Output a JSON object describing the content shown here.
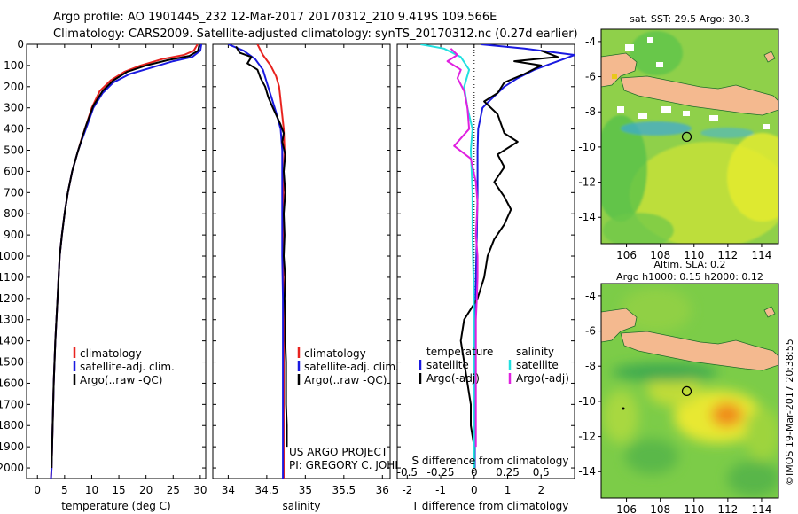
{
  "header": {
    "line1": "Argo profile: AO 1901445_232 12-Mar-2017 20170312_210 9.419S 109.566E",
    "line2": "Climatology: CARS2009. Satellite-adjusted climatology: synTS_20170312.nc (0.27d earlier)"
  },
  "watermark": "©IMOS 19-Mar-2017 20:38:55",
  "colors": {
    "climatology": "#e8231f",
    "satellite": "#1a1ae0",
    "argo": "#000000",
    "sat_cyan": "#22e0e0",
    "argo_adj": "#e020e0",
    "land": "#f4b98f"
  },
  "chart_data": [
    {
      "type": "line",
      "panel": "temperature",
      "xlabel": "temperature (deg C)",
      "xlim": [
        -2,
        31
      ],
      "xticks": [
        0,
        5,
        10,
        15,
        20,
        25,
        30
      ],
      "ylim": [
        2050,
        0
      ],
      "yticks": [
        0,
        100,
        200,
        300,
        400,
        500,
        600,
        700,
        800,
        900,
        1000,
        1100,
        1200,
        1300,
        1400,
        1500,
        1600,
        1700,
        1800,
        1900,
        2000
      ],
      "legend": [
        "climatology",
        "satellite-adj. clim.",
        "Argo(..raw -QC)"
      ],
      "series": [
        {
          "name": "climatology",
          "color": "#e8231f",
          "points": [
            [
              29.5,
              0
            ],
            [
              28.8,
              30
            ],
            [
              27,
              50
            ],
            [
              23,
              70
            ],
            [
              19,
              100
            ],
            [
              16,
              130
            ],
            [
              13.5,
              170
            ],
            [
              11.5,
              220
            ],
            [
              10,
              300
            ],
            [
              9,
              380
            ],
            [
              8.1,
              450
            ],
            [
              7.5,
              500
            ],
            [
              6.4,
              600
            ],
            [
              5.6,
              700
            ],
            [
              5,
              800
            ],
            [
              4.5,
              900
            ],
            [
              4.1,
              1000
            ],
            [
              3.7,
              1200
            ],
            [
              3.3,
              1400
            ],
            [
              3,
              1600
            ],
            [
              2.8,
              1800
            ],
            [
              2.6,
              2000
            ],
            [
              2.5,
              2050
            ]
          ]
        },
        {
          "name": "satellite-adj. clim.",
          "color": "#1a1ae0",
          "points": [
            [
              30.2,
              0
            ],
            [
              30,
              30
            ],
            [
              28.5,
              60
            ],
            [
              25,
              80
            ],
            [
              21,
              110
            ],
            [
              17,
              140
            ],
            [
              14,
              180
            ],
            [
              12,
              230
            ],
            [
              10.3,
              300
            ],
            [
              9.2,
              380
            ],
            [
              8.2,
              450
            ],
            [
              7.5,
              500
            ],
            [
              6.4,
              600
            ],
            [
              5.6,
              700
            ],
            [
              5,
              800
            ],
            [
              4.5,
              900
            ],
            [
              4.1,
              1000
            ],
            [
              3.7,
              1200
            ],
            [
              3.3,
              1400
            ],
            [
              3,
              1600
            ],
            [
              2.8,
              1800
            ],
            [
              2.6,
              2000
            ],
            [
              2.5,
              2050
            ]
          ]
        },
        {
          "name": "Argo(..raw -QC)",
          "color": "#000000",
          "points": [
            [
              29.8,
              5
            ],
            [
              29.6,
              30
            ],
            [
              28,
              55
            ],
            [
              24,
              75
            ],
            [
              20,
              100
            ],
            [
              16.5,
              130
            ],
            [
              14,
              170
            ],
            [
              12,
              220
            ],
            [
              10.3,
              290
            ],
            [
              9,
              380
            ],
            [
              8,
              460
            ],
            [
              7.4,
              510
            ],
            [
              6.4,
              600
            ],
            [
              5.6,
              700
            ],
            [
              5,
              800
            ],
            [
              4.5,
              900
            ],
            [
              4.1,
              1000
            ],
            [
              3.7,
              1200
            ],
            [
              3.3,
              1400
            ],
            [
              3,
              1600
            ],
            [
              2.8,
              1800
            ],
            [
              2.6,
              2000
            ]
          ]
        }
      ]
    },
    {
      "type": "line",
      "panel": "salinity",
      "xlabel": "salinity",
      "xlim": [
        33.8,
        36.1
      ],
      "xticks": [
        34,
        34.5,
        35,
        35.5,
        36
      ],
      "ylim": [
        2050,
        0
      ],
      "legend": [
        "climatology",
        "satellite-adj. clim.",
        "Argo(..raw -QC)"
      ],
      "series": [
        {
          "name": "climatology",
          "color": "#e8231f",
          "points": [
            [
              34.38,
              0
            ],
            [
              34.45,
              50
            ],
            [
              34.55,
              100
            ],
            [
              34.62,
              150
            ],
            [
              34.66,
              200
            ],
            [
              34.69,
              300
            ],
            [
              34.72,
              400
            ],
            [
              34.73,
              500
            ],
            [
              34.72,
              600
            ],
            [
              34.71,
              800
            ],
            [
              34.71,
              1000
            ],
            [
              34.72,
              1200
            ],
            [
              34.72,
              1500
            ],
            [
              34.72,
              1800
            ],
            [
              34.72,
              2050
            ]
          ]
        },
        {
          "name": "satellite-adj. clim.",
          "color": "#1a1ae0",
          "points": [
            [
              34.0,
              0
            ],
            [
              34.2,
              30
            ],
            [
              34.35,
              70
            ],
            [
              34.45,
              120
            ],
            [
              34.5,
              180
            ],
            [
              34.56,
              250
            ],
            [
              34.62,
              320
            ],
            [
              34.68,
              400
            ],
            [
              34.7,
              500
            ],
            [
              34.7,
              600
            ],
            [
              34.7,
              800
            ],
            [
              34.7,
              1000
            ],
            [
              34.71,
              1200
            ],
            [
              34.71,
              1500
            ],
            [
              34.71,
              1800
            ],
            [
              34.71,
              2050
            ]
          ]
        },
        {
          "name": "Argo(..raw -QC)",
          "color": "#000000",
          "points": [
            [
              34.1,
              10
            ],
            [
              34.15,
              40
            ],
            [
              34.3,
              60
            ],
            [
              34.25,
              90
            ],
            [
              34.38,
              120
            ],
            [
              34.42,
              160
            ],
            [
              34.48,
              200
            ],
            [
              34.52,
              250
            ],
            [
              34.58,
              300
            ],
            [
              34.68,
              380
            ],
            [
              34.72,
              420
            ],
            [
              34.7,
              460
            ],
            [
              34.74,
              520
            ],
            [
              34.72,
              600
            ],
            [
              34.74,
              700
            ],
            [
              34.72,
              800
            ],
            [
              34.73,
              900
            ],
            [
              34.72,
              1000
            ],
            [
              34.74,
              1100
            ],
            [
              34.73,
              1200
            ],
            [
              34.74,
              1300
            ],
            [
              34.74,
              1400
            ],
            [
              34.75,
              1500
            ],
            [
              34.75,
              1600
            ],
            [
              34.75,
              1700
            ],
            [
              34.76,
              1800
            ],
            [
              34.76,
              1900
            ]
          ]
        }
      ],
      "annotations": [
        "US ARGO PROJECT",
        "PI: GREGORY C. JOHNSON"
      ]
    },
    {
      "type": "line",
      "panel": "difference",
      "xlabel": "T difference from climatology",
      "xlabel_top": "S difference from climatology",
      "xlim": [
        -2.3,
        3.0
      ],
      "xticks": [
        -2,
        -1,
        0,
        1,
        2
      ],
      "xticks_top": [
        "-0.5",
        "-0.25",
        "0",
        "0.25",
        "0.5"
      ],
      "ylim": [
        2050,
        0
      ],
      "legend_titles": [
        "temperature",
        "salinity"
      ],
      "legend": [
        "satellite",
        "Argo(-adj)",
        "satellite",
        "Argo(-adj)"
      ],
      "series": [
        {
          "name": "satellite",
          "group": "temperature",
          "color": "#1a1ae0",
          "points": [
            [
              0.2,
              0
            ],
            [
              1.5,
              20
            ],
            [
              3.0,
              50
            ],
            [
              2.5,
              80
            ],
            [
              1.8,
              120
            ],
            [
              1.3,
              160
            ],
            [
              0.9,
              200
            ],
            [
              0.5,
              260
            ],
            [
              0.25,
              300
            ],
            [
              0.12,
              400
            ],
            [
              0.1,
              500
            ],
            [
              0.1,
              700
            ],
            [
              0.08,
              900
            ],
            [
              0.05,
              1100
            ],
            [
              0.03,
              1300
            ],
            [
              0.02,
              1500
            ],
            [
              0.02,
              2000
            ]
          ]
        },
        {
          "name": "Argo(-adj)",
          "group": "temperature",
          "color": "#000000",
          "points": [
            [
              2.0,
              30
            ],
            [
              2.5,
              60
            ],
            [
              1.2,
              80
            ],
            [
              2.0,
              100
            ],
            [
              1.5,
              140
            ],
            [
              0.9,
              180
            ],
            [
              0.7,
              230
            ],
            [
              0.3,
              270
            ],
            [
              0.7,
              330
            ],
            [
              0.9,
              420
            ],
            [
              1.3,
              460
            ],
            [
              0.7,
              520
            ],
            [
              0.9,
              580
            ],
            [
              0.6,
              650
            ],
            [
              0.9,
              720
            ],
            [
              1.1,
              780
            ],
            [
              0.9,
              850
            ],
            [
              0.6,
              920
            ],
            [
              0.4,
              1000
            ],
            [
              0.3,
              1100
            ],
            [
              0.1,
              1200
            ],
            [
              -0.3,
              1300
            ],
            [
              -0.4,
              1400
            ],
            [
              -0.3,
              1500
            ],
            [
              -0.2,
              1600
            ],
            [
              -0.1,
              1700
            ],
            [
              -0.1,
              1800
            ],
            [
              0,
              1900
            ],
            [
              0,
              2000
            ]
          ]
        },
        {
          "name": "satellite",
          "group": "salinity",
          "color": "#22e0e0",
          "points": [
            [
              -1.6,
              0
            ],
            [
              -0.9,
              20
            ],
            [
              -0.4,
              60
            ],
            [
              -0.15,
              120
            ],
            [
              -0.3,
              200
            ],
            [
              -0.2,
              300
            ],
            [
              -0.05,
              400
            ],
            [
              -0.1,
              500
            ],
            [
              -0.05,
              700
            ],
            [
              -0.05,
              900
            ],
            [
              -0.02,
              1100
            ],
            [
              0,
              1300
            ],
            [
              0,
              1500
            ],
            [
              0,
              1800
            ],
            [
              0,
              2000
            ]
          ]
        },
        {
          "name": "Argo(-adj)",
          "group": "salinity",
          "color": "#e020e0",
          "points": [
            [
              -0.7,
              20
            ],
            [
              -0.5,
              50
            ],
            [
              -0.8,
              80
            ],
            [
              -0.4,
              120
            ],
            [
              -0.5,
              160
            ],
            [
              -0.3,
              220
            ],
            [
              -0.2,
              300
            ],
            [
              -0.15,
              400
            ],
            [
              -0.6,
              480
            ],
            [
              -0.1,
              540
            ],
            [
              0.05,
              650
            ],
            [
              0.1,
              750
            ],
            [
              0.05,
              900
            ],
            [
              0.1,
              1000
            ],
            [
              0.1,
              1100
            ],
            [
              0.08,
              1200
            ],
            [
              0.05,
              1300
            ],
            [
              0.05,
              1500
            ],
            [
              0.05,
              1700
            ],
            [
              0.05,
              1900
            ]
          ]
        }
      ]
    },
    {
      "type": "heatmap",
      "panel": "sst-map",
      "title": "sat. SST: 29.5  Argo: 30.3",
      "xticks": [
        106,
        108,
        110,
        112,
        114
      ],
      "yticks": [
        -4,
        -6,
        -8,
        -10,
        -12,
        -14
      ],
      "xlim": [
        104.5,
        115
      ],
      "ylim": [
        -15.5,
        -3.3
      ],
      "argo_position": [
        109.566,
        -9.419
      ]
    },
    {
      "type": "heatmap",
      "panel": "sla-map",
      "title": "Altim. SLA: 0.2",
      "subtitle": "Argo h1000: 0.15 h2000: 0.12",
      "xticks": [
        106,
        108,
        110,
        112,
        114
      ],
      "yticks": [
        -4,
        -6,
        -8,
        -10,
        -12,
        -14
      ],
      "xlim": [
        104.5,
        115
      ],
      "ylim": [
        -15.5,
        -3.3
      ],
      "argo_position": [
        109.566,
        -9.419
      ]
    }
  ]
}
